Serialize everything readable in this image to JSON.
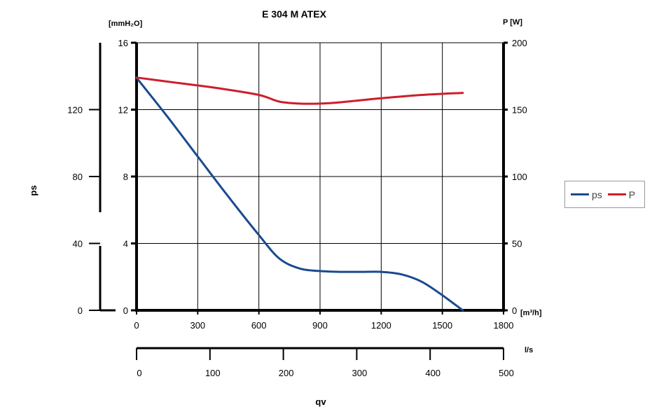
{
  "chart_data": {
    "type": "line",
    "title": "E 304 M ATEX",
    "xlabel": "qv",
    "x_unit_primary": "[m³/h]",
    "x_unit_secondary": "l/s",
    "xlim": [
      0,
      1800
    ],
    "x_ticks": [
      0,
      300,
      600,
      900,
      1200,
      1500,
      1800
    ],
    "x_secondary_ticks": [
      0,
      100,
      200,
      300,
      400,
      500
    ],
    "x_secondary_lim": [
      0,
      500
    ],
    "y_left_unit": "[mmH₂O]",
    "y_left_ticks": [
      0,
      4,
      8,
      12,
      16
    ],
    "ylim": [
      0,
      16
    ],
    "y_outer_label": "ps",
    "y_outer_ticks": [
      0,
      40,
      80,
      120
    ],
    "y_outer_lim": [
      0,
      160
    ],
    "y_right_unit": "P [W]",
    "y_right_ticks": [
      0,
      50,
      100,
      150,
      200
    ],
    "y_right_lim": [
      0,
      200
    ],
    "grid": true,
    "legend_position": "right",
    "series": [
      {
        "name": "ps",
        "axis": "left",
        "color": "#1a4a8f",
        "x": [
          0,
          150,
          300,
          450,
          600,
          700,
          800,
          900,
          1000,
          1100,
          1200,
          1300,
          1400,
          1500,
          1600
        ],
        "values": [
          13.9,
          11.6,
          9.2,
          6.8,
          4.5,
          3.1,
          2.5,
          2.35,
          2.3,
          2.3,
          2.3,
          2.15,
          1.7,
          0.9,
          0.0
        ]
      },
      {
        "name": "P",
        "axis": "right",
        "color": "#cc1f2a",
        "x": [
          0,
          200,
          400,
          600,
          700,
          800,
          900,
          1000,
          1200,
          1400,
          1600
        ],
        "values": [
          174,
          170,
          166,
          161,
          156,
          154.5,
          154.5,
          155.5,
          158.5,
          161,
          162.5
        ]
      }
    ]
  }
}
